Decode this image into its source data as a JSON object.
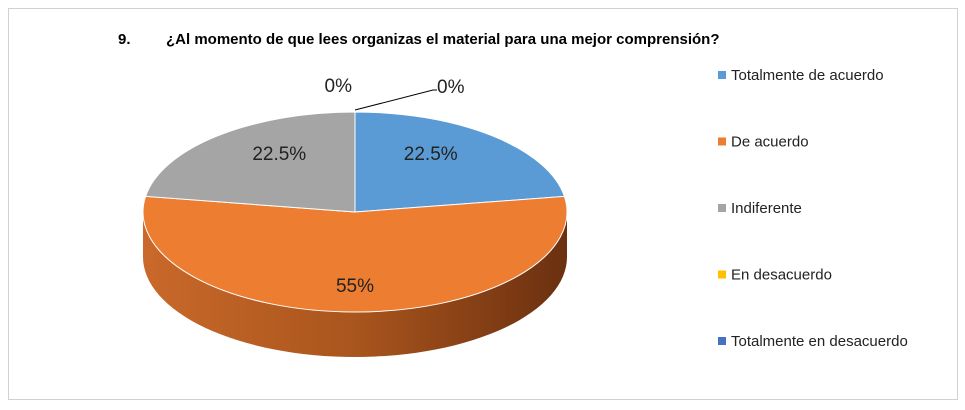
{
  "chart_data": {
    "type": "pie3d",
    "title_number": "9.",
    "title": "¿Al momento de que lees organizas el material para una mejor comprensión?",
    "categories": [
      "Totalmente de acuerdo",
      "De acuerdo",
      "Indiferente",
      "En desacuerdo",
      "Totalmente en desacuerdo"
    ],
    "values": [
      22.5,
      55,
      22.5,
      0,
      0
    ],
    "value_labels": [
      "22.5%",
      "55%",
      "22.5%",
      "0%",
      "0%"
    ],
    "colors": [
      "#5b9bd5",
      "#ed7d31",
      "#a5a5a5",
      "#ffc000",
      "#4472c4"
    ],
    "legend": "right"
  }
}
